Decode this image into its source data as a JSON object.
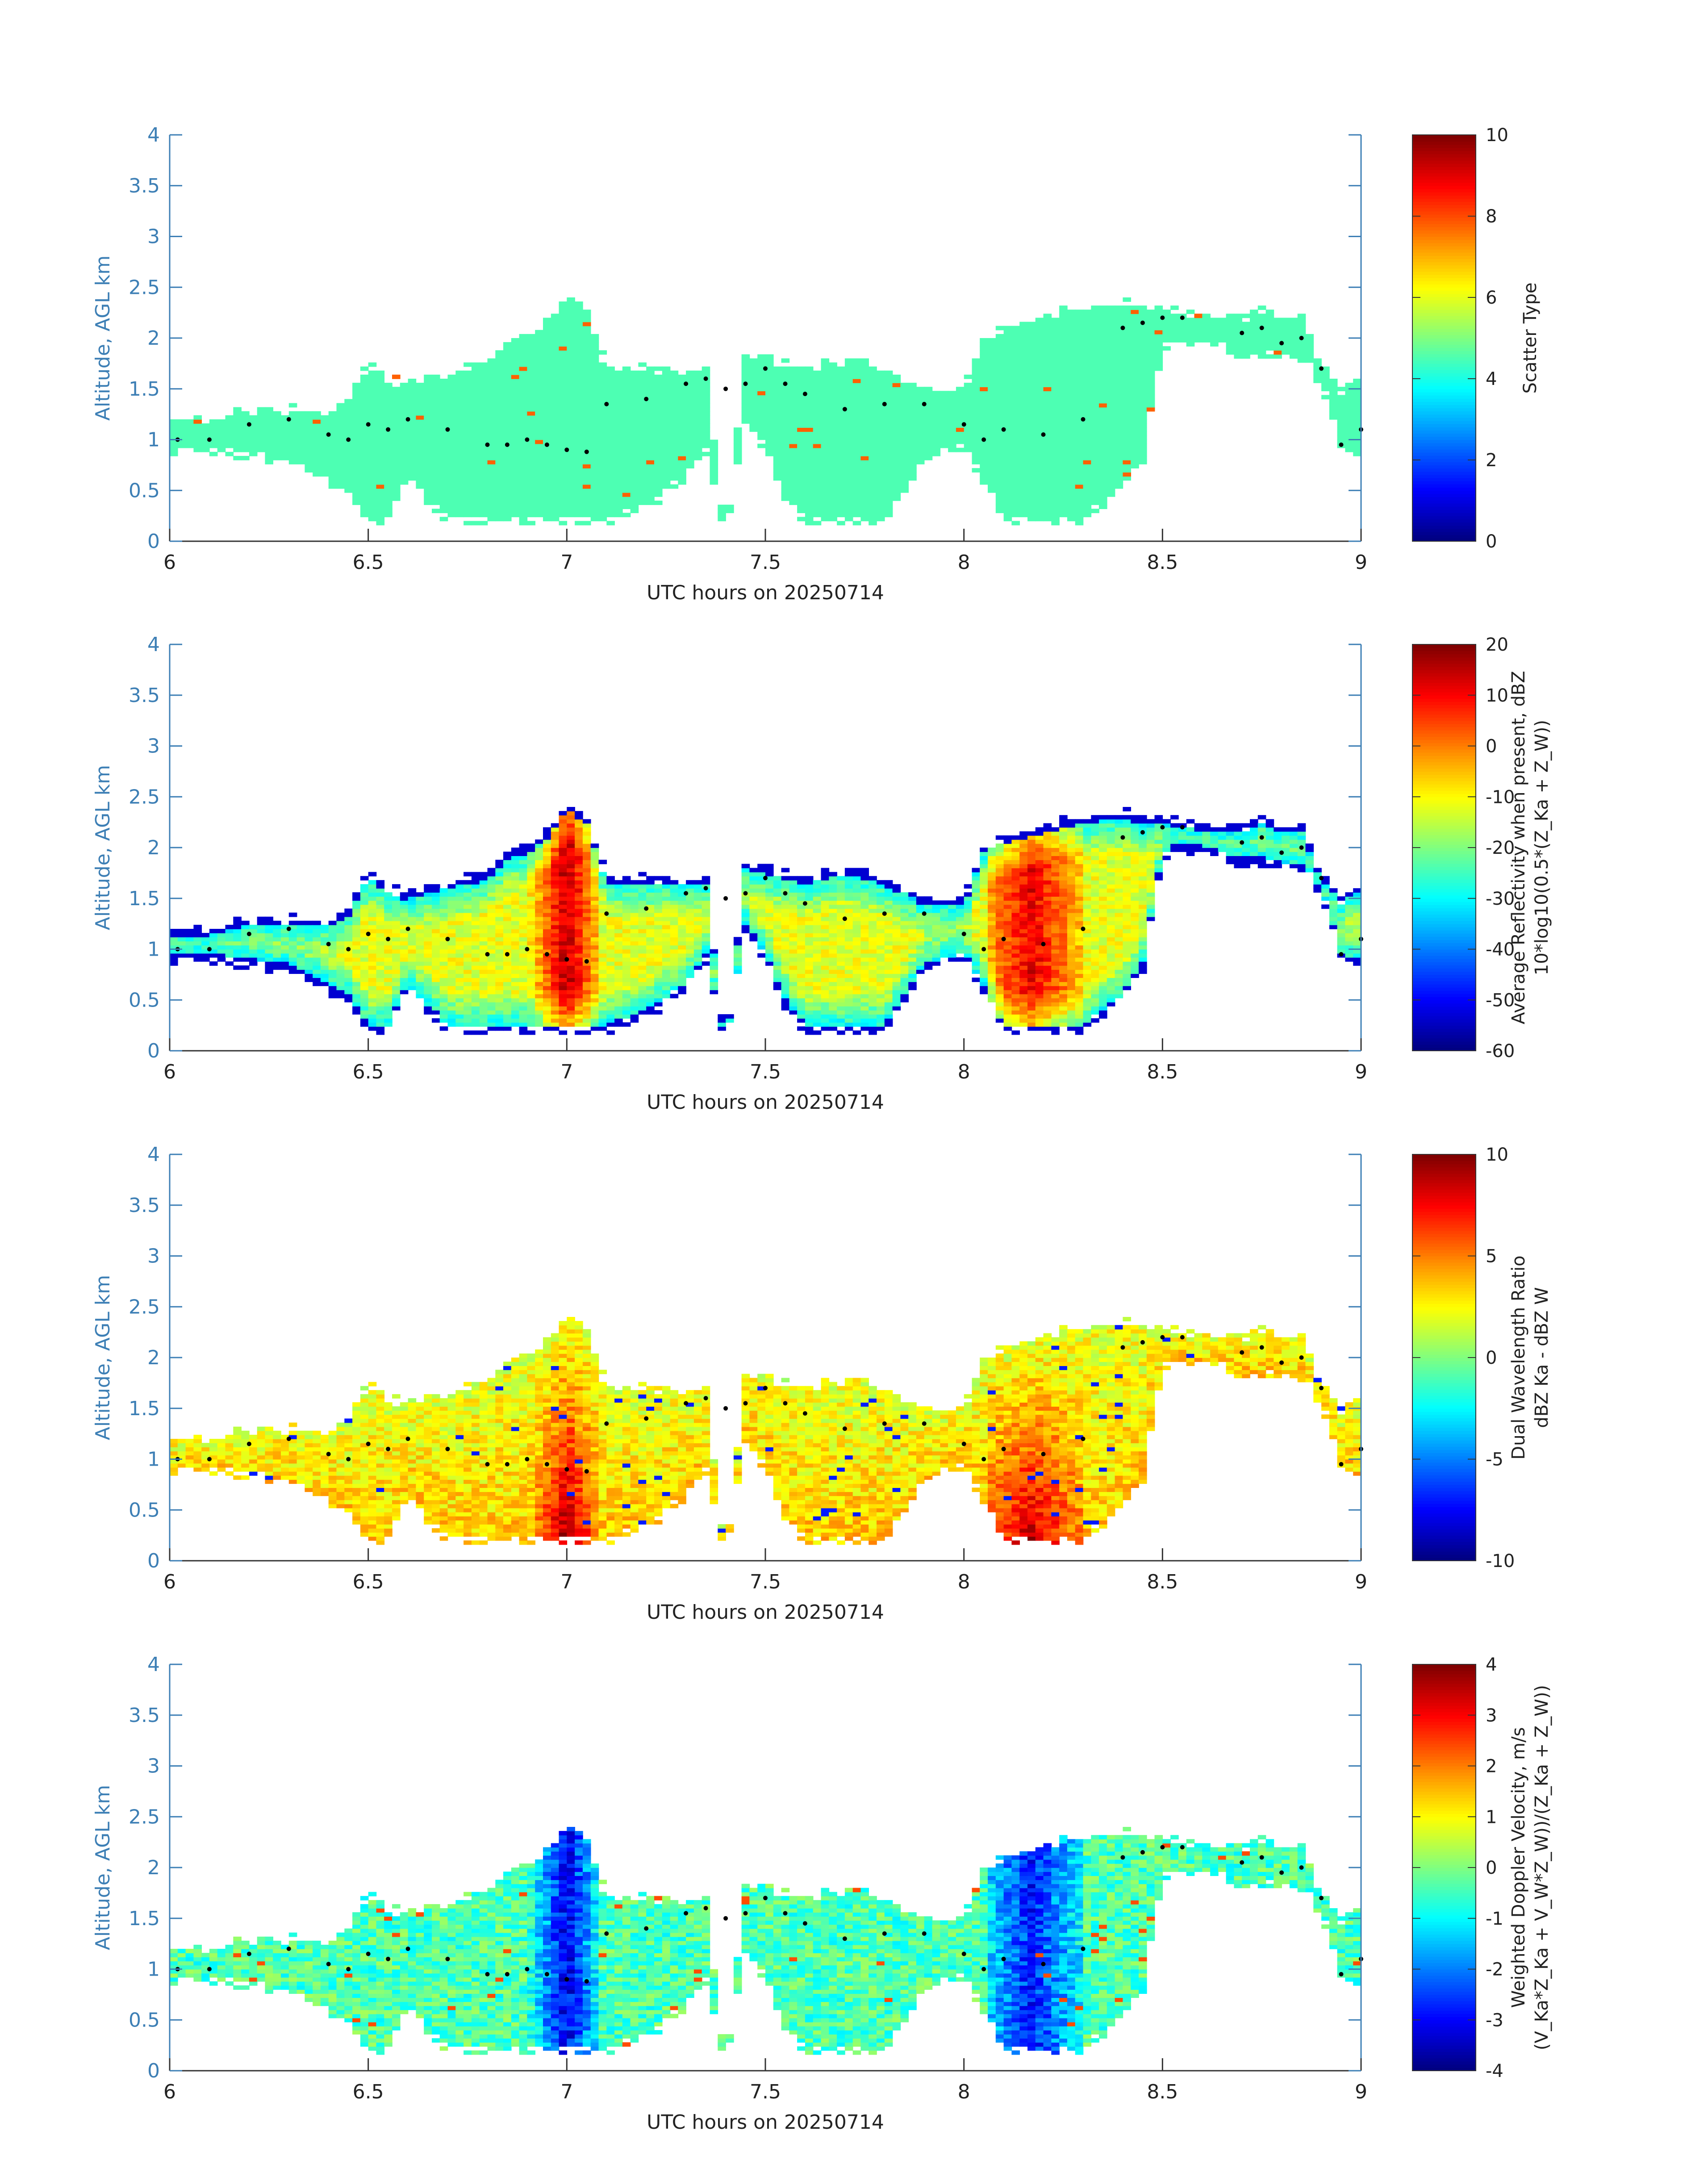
{
  "chart_data": [
    {
      "type": "heatmap",
      "xlabel": "UTC hours on 20250714",
      "ylabel": "Altitude, AGL km",
      "xlim": [
        6,
        9
      ],
      "ylim": [
        0,
        4
      ],
      "x_ticks": [
        "6",
        "6.5",
        "7",
        "7.5",
        "8",
        "8.5",
        "9"
      ],
      "y_ticks": [
        "0",
        "0.5",
        "1",
        "1.5",
        "2",
        "2.5",
        "3",
        "3.5",
        "4"
      ],
      "colorbar_label": [
        "Scatter Type"
      ],
      "clim": [
        0,
        10
      ],
      "colorbar_ticks": [
        "0",
        "2",
        "4",
        "6",
        "8",
        "10"
      ],
      "colormap": "jet",
      "field": "scatter",
      "dots": "cloud-base"
    },
    {
      "type": "heatmap",
      "xlabel": "UTC hours on 20250714",
      "ylabel": "Altitude, AGL km",
      "xlim": [
        6,
        9
      ],
      "ylim": [
        0,
        4
      ],
      "x_ticks": [
        "6",
        "6.5",
        "7",
        "7.5",
        "8",
        "8.5",
        "9"
      ],
      "y_ticks": [
        "0",
        "0.5",
        "1",
        "1.5",
        "2",
        "2.5",
        "3",
        "3.5",
        "4"
      ],
      "colorbar_label": [
        "Average Reflectivity when present, dBZ",
        "10*log10(0.5*(Z_Ka + Z_W))"
      ],
      "clim": [
        -60,
        20
      ],
      "colorbar_ticks": [
        "-60",
        "-50",
        "-40",
        "-30",
        "-20",
        "-10",
        "0",
        "10",
        "20"
      ],
      "colormap": "jet",
      "field": "reflectivity",
      "dots": "cloud-base"
    },
    {
      "type": "heatmap",
      "xlabel": "UTC hours on 20250714",
      "ylabel": "Altitude, AGL km",
      "xlim": [
        6,
        9
      ],
      "ylim": [
        0,
        4
      ],
      "x_ticks": [
        "6",
        "6.5",
        "7",
        "7.5",
        "8",
        "8.5",
        "9"
      ],
      "y_ticks": [
        "0",
        "0.5",
        "1",
        "1.5",
        "2",
        "2.5",
        "3",
        "3.5",
        "4"
      ],
      "colorbar_label": [
        "Dual Wavelength Ratio",
        "dBZ Ka - dBZ W"
      ],
      "clim": [
        -10,
        10
      ],
      "colorbar_ticks": [
        "-10",
        "-5",
        "0",
        "5",
        "10"
      ],
      "colormap": "jet",
      "field": "dwr",
      "dots": "cloud-base"
    },
    {
      "type": "heatmap",
      "xlabel": "UTC hours on 20250714",
      "ylabel": "Altitude, AGL km",
      "xlim": [
        6,
        9
      ],
      "ylim": [
        0,
        4
      ],
      "x_ticks": [
        "6",
        "6.5",
        "7",
        "7.5",
        "8",
        "8.5",
        "9"
      ],
      "y_ticks": [
        "0",
        "0.5",
        "1",
        "1.5",
        "2",
        "2.5",
        "3",
        "3.5",
        "4"
      ],
      "colorbar_label": [
        "Weighted Doppler Velocity, m/s",
        "(V_Ka*Z_Ka + V_W*Z_W))/(Z_Ka + Z_W))"
      ],
      "clim": [
        -4,
        4
      ],
      "colorbar_ticks": [
        "-4",
        "-3",
        "-2",
        "-1",
        "0",
        "1",
        "2",
        "3",
        "4"
      ],
      "colormap": "jet",
      "field": "velocity",
      "dots": "cloud-base"
    }
  ],
  "echo_profile": {
    "x_hours": [
      6.02,
      6.1,
      6.2,
      6.3,
      6.4,
      6.45,
      6.5,
      6.55,
      6.6,
      6.7,
      6.8,
      6.85,
      6.9,
      6.95,
      7.0,
      7.05,
      7.1,
      7.2,
      7.3,
      7.35,
      7.4,
      7.45,
      7.5,
      7.55,
      7.6,
      7.7,
      7.8,
      7.9,
      8.0,
      8.05,
      8.1,
      8.2,
      8.3,
      8.4,
      8.45,
      8.5,
      8.55,
      8.7,
      8.75,
      8.8,
      8.85,
      8.9,
      8.95,
      9.0
    ],
    "top_km": [
      1.2,
      1.2,
      1.3,
      1.3,
      1.3,
      1.4,
      1.75,
      1.6,
      1.55,
      1.65,
      1.75,
      1.95,
      2.0,
      2.15,
      2.45,
      2.3,
      1.7,
      1.7,
      1.7,
      1.7,
      0.0,
      1.85,
      1.8,
      1.75,
      1.7,
      1.8,
      1.7,
      1.5,
      1.5,
      2.0,
      2.1,
      2.2,
      2.3,
      2.35,
      2.3,
      2.3,
      2.25,
      2.2,
      2.3,
      2.2,
      2.2,
      1.75,
      1.5,
      1.65
    ],
    "bottom_km": [
      0.9,
      0.9,
      0.85,
      0.8,
      0.6,
      0.5,
      0.2,
      0.2,
      0.6,
      0.2,
      0.2,
      0.2,
      0.2,
      0.2,
      0.2,
      0.2,
      0.2,
      0.35,
      0.6,
      0.9,
      0.0,
      1.2,
      0.9,
      0.45,
      0.2,
      0.2,
      0.2,
      0.8,
      0.9,
      0.6,
      0.2,
      0.2,
      0.2,
      0.5,
      0.8,
      1.9,
      2.0,
      1.85,
      1.85,
      1.8,
      1.8,
      1.55,
      0.9,
      0.85
    ],
    "cloud_base_km": [
      1.0,
      1.0,
      1.15,
      1.2,
      1.05,
      1.0,
      1.15,
      1.1,
      1.2,
      1.1,
      0.95,
      0.95,
      1.0,
      0.95,
      0.9,
      0.88,
      1.35,
      1.4,
      1.55,
      1.6,
      1.5,
      1.55,
      1.7,
      1.55,
      1.45,
      1.3,
      1.35,
      1.35,
      1.15,
      1.0,
      1.1,
      1.05,
      1.2,
      2.1,
      2.15,
      2.2,
      2.2,
      2.05,
      2.1,
      1.95,
      2.0,
      1.7,
      0.95,
      1.1
    ]
  }
}
